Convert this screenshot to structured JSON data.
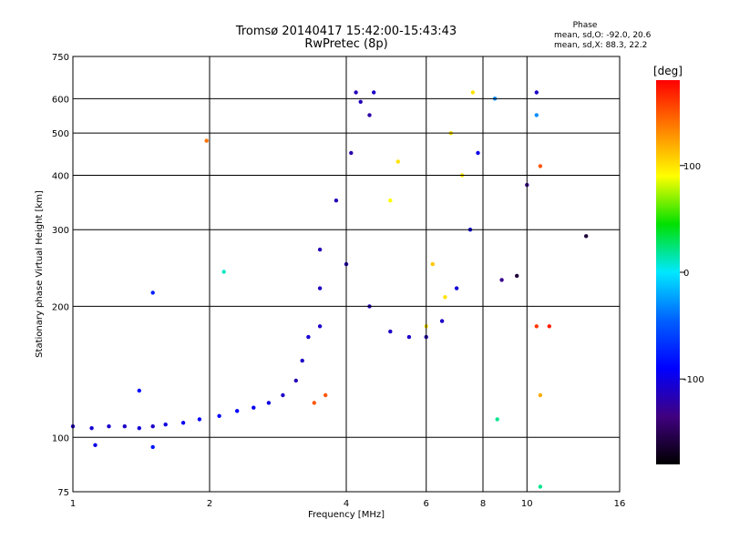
{
  "chart_data": {
    "type": "scatter",
    "title": "Tromsø 20140417 15:42:00-15:43:43",
    "subtitle": "RwPretec (8p)",
    "xlabel": "Frequency [MHz]",
    "ylabel": "Stationary phase Virtual Height [km]",
    "x_scale": "log",
    "y_scale": "log",
    "xlim": [
      1,
      16
    ],
    "ylim": [
      75,
      750
    ],
    "x_ticks": [
      "1",
      "2",
      "4",
      "6",
      "8",
      "10",
      "16"
    ],
    "y_ticks": [
      "75",
      "100",
      "200",
      "300",
      "400",
      "500",
      "600",
      "750"
    ],
    "grid": true,
    "stats": {
      "heading": "Phase",
      "line_o": "mean, sd,O: -92.0, 20.6",
      "line_x": "mean, sd,X:  88.3, 22.2"
    },
    "colorbar": {
      "unit": "[deg]",
      "range": [
        -180,
        180
      ],
      "ticks": [
        "100",
        "0",
        "-100"
      ],
      "tick_values": [
        100,
        0,
        -100
      ],
      "colors": [
        "#ff0000",
        "#ff8000",
        "#ffff00",
        "#00e000",
        "#00e8ff",
        "#0060ff",
        "#0000ff",
        "#400080",
        "#000000"
      ]
    },
    "points": [
      {
        "x": 1.0,
        "y": 106,
        "phase": -110
      },
      {
        "x": 1.1,
        "y": 105,
        "phase": -105
      },
      {
        "x": 1.2,
        "y": 106,
        "phase": -108
      },
      {
        "x": 1.3,
        "y": 106,
        "phase": -110
      },
      {
        "x": 1.4,
        "y": 105,
        "phase": -105
      },
      {
        "x": 1.5,
        "y": 106,
        "phase": -110
      },
      {
        "x": 1.6,
        "y": 107,
        "phase": -100
      },
      {
        "x": 1.75,
        "y": 108,
        "phase": -95
      },
      {
        "x": 1.9,
        "y": 110,
        "phase": -92
      },
      {
        "x": 2.1,
        "y": 112,
        "phase": -88
      },
      {
        "x": 2.3,
        "y": 115,
        "phase": -90
      },
      {
        "x": 2.5,
        "y": 117,
        "phase": -95
      },
      {
        "x": 2.7,
        "y": 120,
        "phase": -100
      },
      {
        "x": 2.9,
        "y": 125,
        "phase": -110
      },
      {
        "x": 3.1,
        "y": 135,
        "phase": -115
      },
      {
        "x": 3.2,
        "y": 150,
        "phase": -110
      },
      {
        "x": 3.3,
        "y": 170,
        "phase": -105
      },
      {
        "x": 1.12,
        "y": 96,
        "phase": -100
      },
      {
        "x": 1.5,
        "y": 95,
        "phase": -80
      },
      {
        "x": 1.4,
        "y": 128,
        "phase": -85
      },
      {
        "x": 1.5,
        "y": 215,
        "phase": -75
      },
      {
        "x": 1.97,
        "y": 480,
        "phase": 140
      },
      {
        "x": 2.15,
        "y": 240,
        "phase": 10
      },
      {
        "x": 3.5,
        "y": 180,
        "phase": -110
      },
      {
        "x": 3.5,
        "y": 220,
        "phase": -110
      },
      {
        "x": 3.5,
        "y": 270,
        "phase": -115
      },
      {
        "x": 3.8,
        "y": 350,
        "phase": -115
      },
      {
        "x": 4.1,
        "y": 450,
        "phase": -120
      },
      {
        "x": 4.0,
        "y": 250,
        "phase": -115
      },
      {
        "x": 4.3,
        "y": 590,
        "phase": -115
      },
      {
        "x": 4.5,
        "y": 550,
        "phase": -120
      },
      {
        "x": 4.6,
        "y": 620,
        "phase": -110
      },
      {
        "x": 4.2,
        "y": 620,
        "phase": -115
      },
      {
        "x": 4.5,
        "y": 200,
        "phase": -115
      },
      {
        "x": 5.0,
        "y": 175,
        "phase": -110
      },
      {
        "x": 5.5,
        "y": 170,
        "phase": -110
      },
      {
        "x": 6.0,
        "y": 170,
        "phase": -115
      },
      {
        "x": 6.5,
        "y": 185,
        "phase": -110
      },
      {
        "x": 7.0,
        "y": 220,
        "phase": -105
      },
      {
        "x": 7.5,
        "y": 300,
        "phase": -100
      },
      {
        "x": 7.8,
        "y": 450,
        "phase": -100
      },
      {
        "x": 5.0,
        "y": 350,
        "phase": 90
      },
      {
        "x": 5.2,
        "y": 430,
        "phase": 100
      },
      {
        "x": 6.2,
        "y": 250,
        "phase": 110
      },
      {
        "x": 6.6,
        "y": 210,
        "phase": 100
      },
      {
        "x": 6.0,
        "y": 180,
        "phase": 100
      },
      {
        "x": 7.2,
        "y": 400,
        "phase": 100
      },
      {
        "x": 7.6,
        "y": 620,
        "phase": 100
      },
      {
        "x": 6.8,
        "y": 500,
        "phase": 100
      },
      {
        "x": 3.6,
        "y": 125,
        "phase": 150
      },
      {
        "x": 3.4,
        "y": 120,
        "phase": 150
      },
      {
        "x": 8.5,
        "y": 600,
        "phase": -30
      },
      {
        "x": 10.5,
        "y": 620,
        "phase": -110
      },
      {
        "x": 10.5,
        "y": 550,
        "phase": -30
      },
      {
        "x": 10.7,
        "y": 420,
        "phase": 150
      },
      {
        "x": 10.0,
        "y": 380,
        "phase": -130
      },
      {
        "x": 8.8,
        "y": 230,
        "phase": -130
      },
      {
        "x": 9.5,
        "y": 235,
        "phase": -160
      },
      {
        "x": 10.5,
        "y": 180,
        "phase": 160
      },
      {
        "x": 11.2,
        "y": 180,
        "phase": 170
      },
      {
        "x": 10.7,
        "y": 125,
        "phase": 120
      },
      {
        "x": 13.5,
        "y": 290,
        "phase": -160
      },
      {
        "x": 8.6,
        "y": 110,
        "phase": 20
      },
      {
        "x": 10.7,
        "y": 77,
        "phase": 20
      }
    ]
  }
}
